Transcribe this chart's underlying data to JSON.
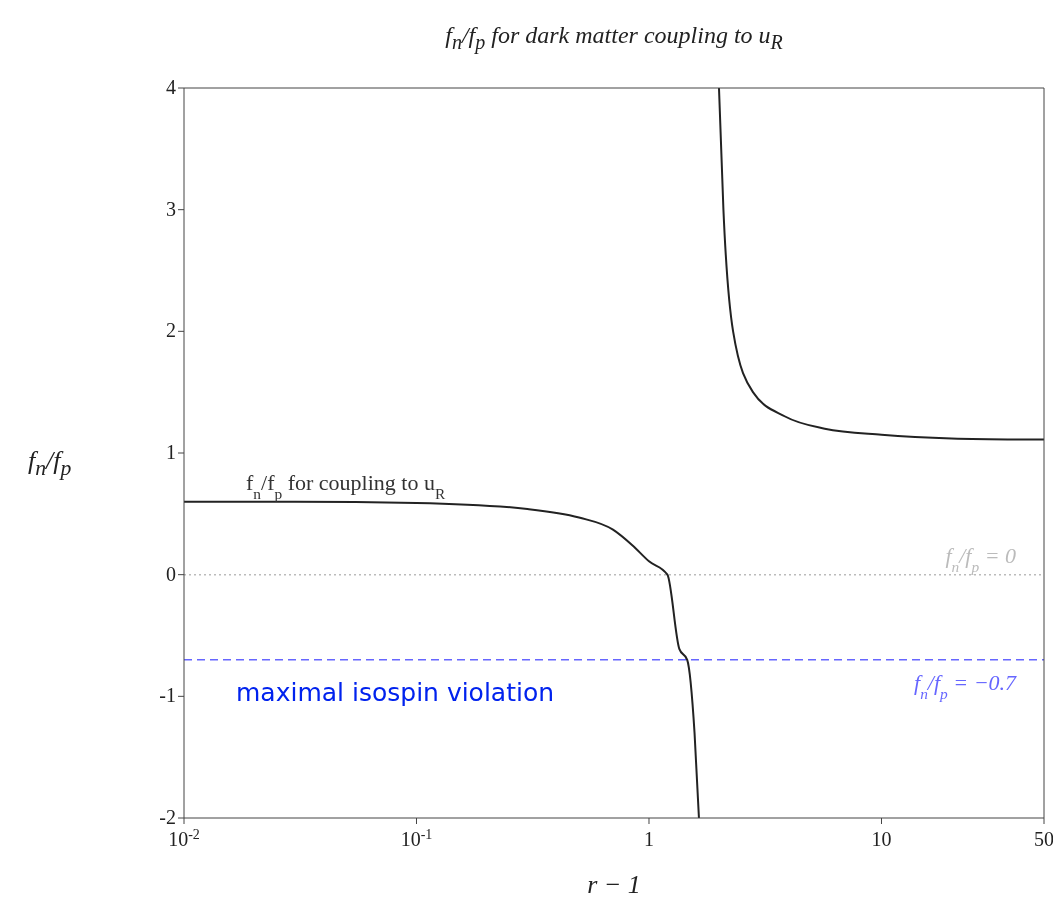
{
  "chart_data": {
    "type": "line",
    "title": "f$_{n}$/f$_{p}$ for dark matter coupling to u$_{R}$",
    "xlabel": "r − 1",
    "ylabel": "f$_{n}$/f$_{p}$",
    "log": "x",
    "xlim": [
      0.01,
      50
    ],
    "xticks": [
      {
        "value": 0.01,
        "label": "10$^{-2}$"
      },
      {
        "value": 0.1,
        "label": "10$^{-1}$"
      },
      1,
      10,
      50
    ],
    "ylim": [
      -2,
      4
    ],
    "yticks": [
      -2,
      -1,
      0,
      1,
      2,
      3,
      4
    ],
    "series": [
      {
        "name": "f$_{n}$/f$_{p}$ for coupling to u$_{R}$",
        "color": "#222222",
        "x": [
          0.01,
          0.03,
          0.1,
          0.3,
          0.5,
          0.7,
          0.85,
          1.0,
          1.2,
          1.35,
          1.46,
          1.57,
          1.64,
          1.8,
          2.0,
          2.09,
          2.3,
          2.8,
          3.85,
          5.7,
          10,
          20,
          50
        ],
        "values": [
          0.6,
          0.6,
          0.59,
          0.54,
          0.47,
          0.37,
          0.24,
          0.11,
          0,
          -0.61,
          -0.7,
          -1.3,
          -2,
          null,
          4,
          3,
          2,
          1.5,
          1.3,
          1.2,
          1.15,
          1.12,
          1.11
        ]
      }
    ],
    "ref_lines": [
      {
        "axis": "y",
        "value": 0,
        "label": "f$_{n}$/f$_{p}$ = 0",
        "color": "#bbbbbb",
        "line_style": "dotted"
      },
      {
        "axis": "y",
        "value": -0.7,
        "label": "f$_{n}$/f$_{p}$ = −0.7",
        "color": "#6666ff",
        "line_style": "dashed"
      }
    ],
    "annotations": [
      "maximal isospin violation"
    ],
    "marker": "none",
    "line_style": "solid"
  }
}
